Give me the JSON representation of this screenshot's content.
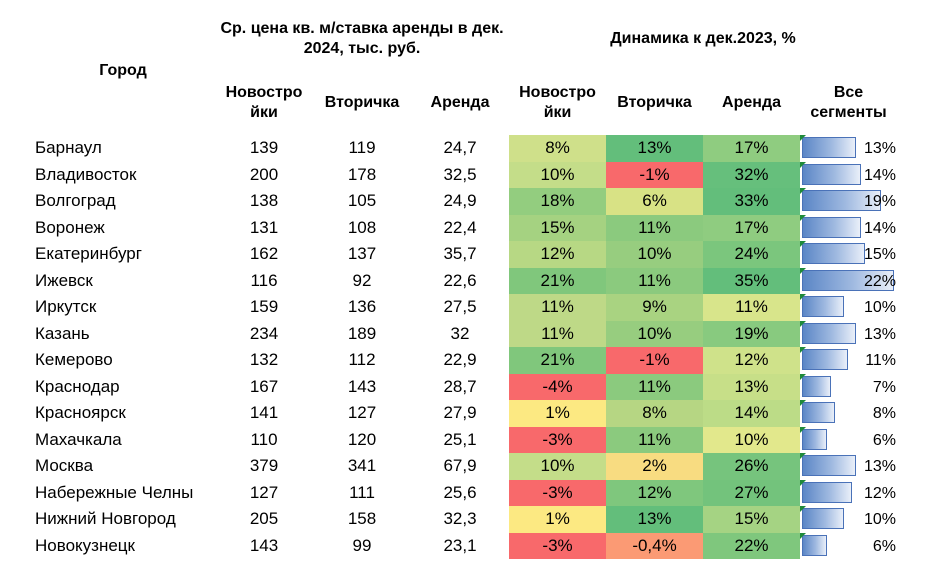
{
  "header": {
    "city": "Город",
    "price_group": "Ср. цена кв. м/ставка аренды в дек. 2024, тыс. руб.",
    "dynamics_group": "Динамика к дек.2023, %",
    "col_new": "Новостро йки",
    "col_secondary": "Вторичка",
    "col_rent": "Аренда",
    "col_all": "Все сегменты"
  },
  "colors": {
    "green_strong": "#63be7b",
    "yellow": "#ffeb84",
    "red": "#f8696b",
    "bar": "#5b86c6"
  },
  "rows": [
    {
      "city": "Барнаул",
      "new": "139",
      "secondary": "119",
      "rent": "24,7",
      "d_new": "8%",
      "d_secondary": "13%",
      "d_rent": "17%",
      "d_all": "13%",
      "all_value": 13,
      "c_new": "#cfe08a",
      "c_sec": "#63be7b",
      "c_rent": "#8fcc80"
    },
    {
      "city": "Владивосток",
      "new": "200",
      "secondary": "178",
      "rent": "32,5",
      "d_new": "10%",
      "d_secondary": "-1%",
      "d_rent": "32%",
      "d_all": "14%",
      "all_value": 14,
      "c_new": "#c4dd89",
      "c_sec": "#f8696b",
      "c_rent": "#66bf7c"
    },
    {
      "city": "Волгоград",
      "new": "138",
      "secondary": "105",
      "rent": "24,9",
      "d_new": "18%",
      "d_secondary": "6%",
      "d_rent": "33%",
      "d_all": "19%",
      "all_value": 19,
      "c_new": "#93cd7f",
      "c_sec": "#d8e285",
      "c_rent": "#63be7b"
    },
    {
      "city": "Воронеж",
      "new": "131",
      "secondary": "108",
      "rent": "22,4",
      "d_new": "15%",
      "d_secondary": "11%",
      "d_rent": "17%",
      "d_all": "14%",
      "all_value": 14,
      "c_new": "#a5d281",
      "c_sec": "#8bca7e",
      "c_rent": "#8fcc80"
    },
    {
      "city": "Екатеринбург",
      "new": "162",
      "secondary": "137",
      "rent": "35,7",
      "d_new": "12%",
      "d_secondary": "10%",
      "d_rent": "24%",
      "d_all": "15%",
      "all_value": 15,
      "c_new": "#b7d884",
      "c_sec": "#97cd7f",
      "c_rent": "#7bc67d"
    },
    {
      "city": "Ижевск",
      "new": "116",
      "secondary": "92",
      "rent": "22,6",
      "d_new": "21%",
      "d_secondary": "11%",
      "d_rent": "35%",
      "d_all": "22%",
      "all_value": 22,
      "c_new": "#80c77c",
      "c_sec": "#8bca7e",
      "c_rent": "#63be7b"
    },
    {
      "city": "Иркутск",
      "new": "159",
      "secondary": "136",
      "rent": "27,5",
      "d_new": "11%",
      "d_secondary": "9%",
      "d_rent": "11%",
      "d_all": "10%",
      "all_value": 10,
      "c_new": "#bed987",
      "c_sec": "#a9d381",
      "c_rent": "#d8e58b"
    },
    {
      "city": "Казань",
      "new": "234",
      "secondary": "189",
      "rent": "32",
      "d_new": "11%",
      "d_secondary": "10%",
      "d_rent": "19%",
      "d_all": "13%",
      "all_value": 13,
      "c_new": "#bed987",
      "c_sec": "#97cd7f",
      "c_rent": "#88ca7f"
    },
    {
      "city": "Кемерово",
      "new": "132",
      "secondary": "112",
      "rent": "22,9",
      "d_new": "21%",
      "d_secondary": "-1%",
      "d_rent": "12%",
      "d_all": "11%",
      "all_value": 11,
      "c_new": "#80c77c",
      "c_sec": "#f8696b",
      "c_rent": "#cfe28a"
    },
    {
      "city": "Краснодар",
      "new": "167",
      "secondary": "143",
      "rent": "28,7",
      "d_new": "-4%",
      "d_secondary": "11%",
      "d_rent": "13%",
      "d_all": "7%",
      "all_value": 7,
      "c_new": "#f8696b",
      "c_sec": "#8bca7e",
      "c_rent": "#c7df88"
    },
    {
      "city": "Красноярск",
      "new": "141",
      "secondary": "127",
      "rent": "27,9",
      "d_new": "1%",
      "d_secondary": "8%",
      "d_rent": "14%",
      "d_all": "8%",
      "all_value": 8,
      "c_new": "#fce982",
      "c_sec": "#b6d683",
      "c_rent": "#bcdc87"
    },
    {
      "city": "Махачкала",
      "new": "110",
      "secondary": "120",
      "rent": "25,1",
      "d_new": "-3%",
      "d_secondary": "11%",
      "d_rent": "10%",
      "d_all": "6%",
      "all_value": 6,
      "c_new": "#f8696b",
      "c_sec": "#8bca7e",
      "c_rent": "#e2e88c"
    },
    {
      "city": "Москва",
      "new": "379",
      "secondary": "341",
      "rent": "67,9",
      "d_new": "10%",
      "d_secondary": "2%",
      "d_rent": "26%",
      "d_all": "13%",
      "all_value": 13,
      "c_new": "#c4dd89",
      "c_sec": "#f8dc81",
      "c_rent": "#76c47d"
    },
    {
      "city": "Набережные Челны",
      "new": "127",
      "secondary": "111",
      "rent": "25,6",
      "d_new": "-3%",
      "d_secondary": "12%",
      "d_rent": "27%",
      "d_all": "12%",
      "all_value": 12,
      "c_new": "#f8696b",
      "c_sec": "#7fc77d",
      "c_rent": "#73c37c"
    },
    {
      "city": "Нижний Новгород",
      "new": "205",
      "secondary": "158",
      "rent": "32,3",
      "d_new": "1%",
      "d_secondary": "13%",
      "d_rent": "15%",
      "d_all": "10%",
      "all_value": 10,
      "c_new": "#fce982",
      "c_sec": "#63be7b",
      "c_rent": "#a5d383"
    },
    {
      "city": "Новокузнецк",
      "new": "143",
      "secondary": "99",
      "rent": "23,1",
      "d_new": "-3%",
      "d_secondary": "-0,4%",
      "d_rent": "22%",
      "d_all": "6%",
      "all_value": 6,
      "c_new": "#f8696b",
      "c_sec": "#fb9a74",
      "c_rent": "#7fc77d"
    }
  ],
  "bar_scale_max": 22
}
